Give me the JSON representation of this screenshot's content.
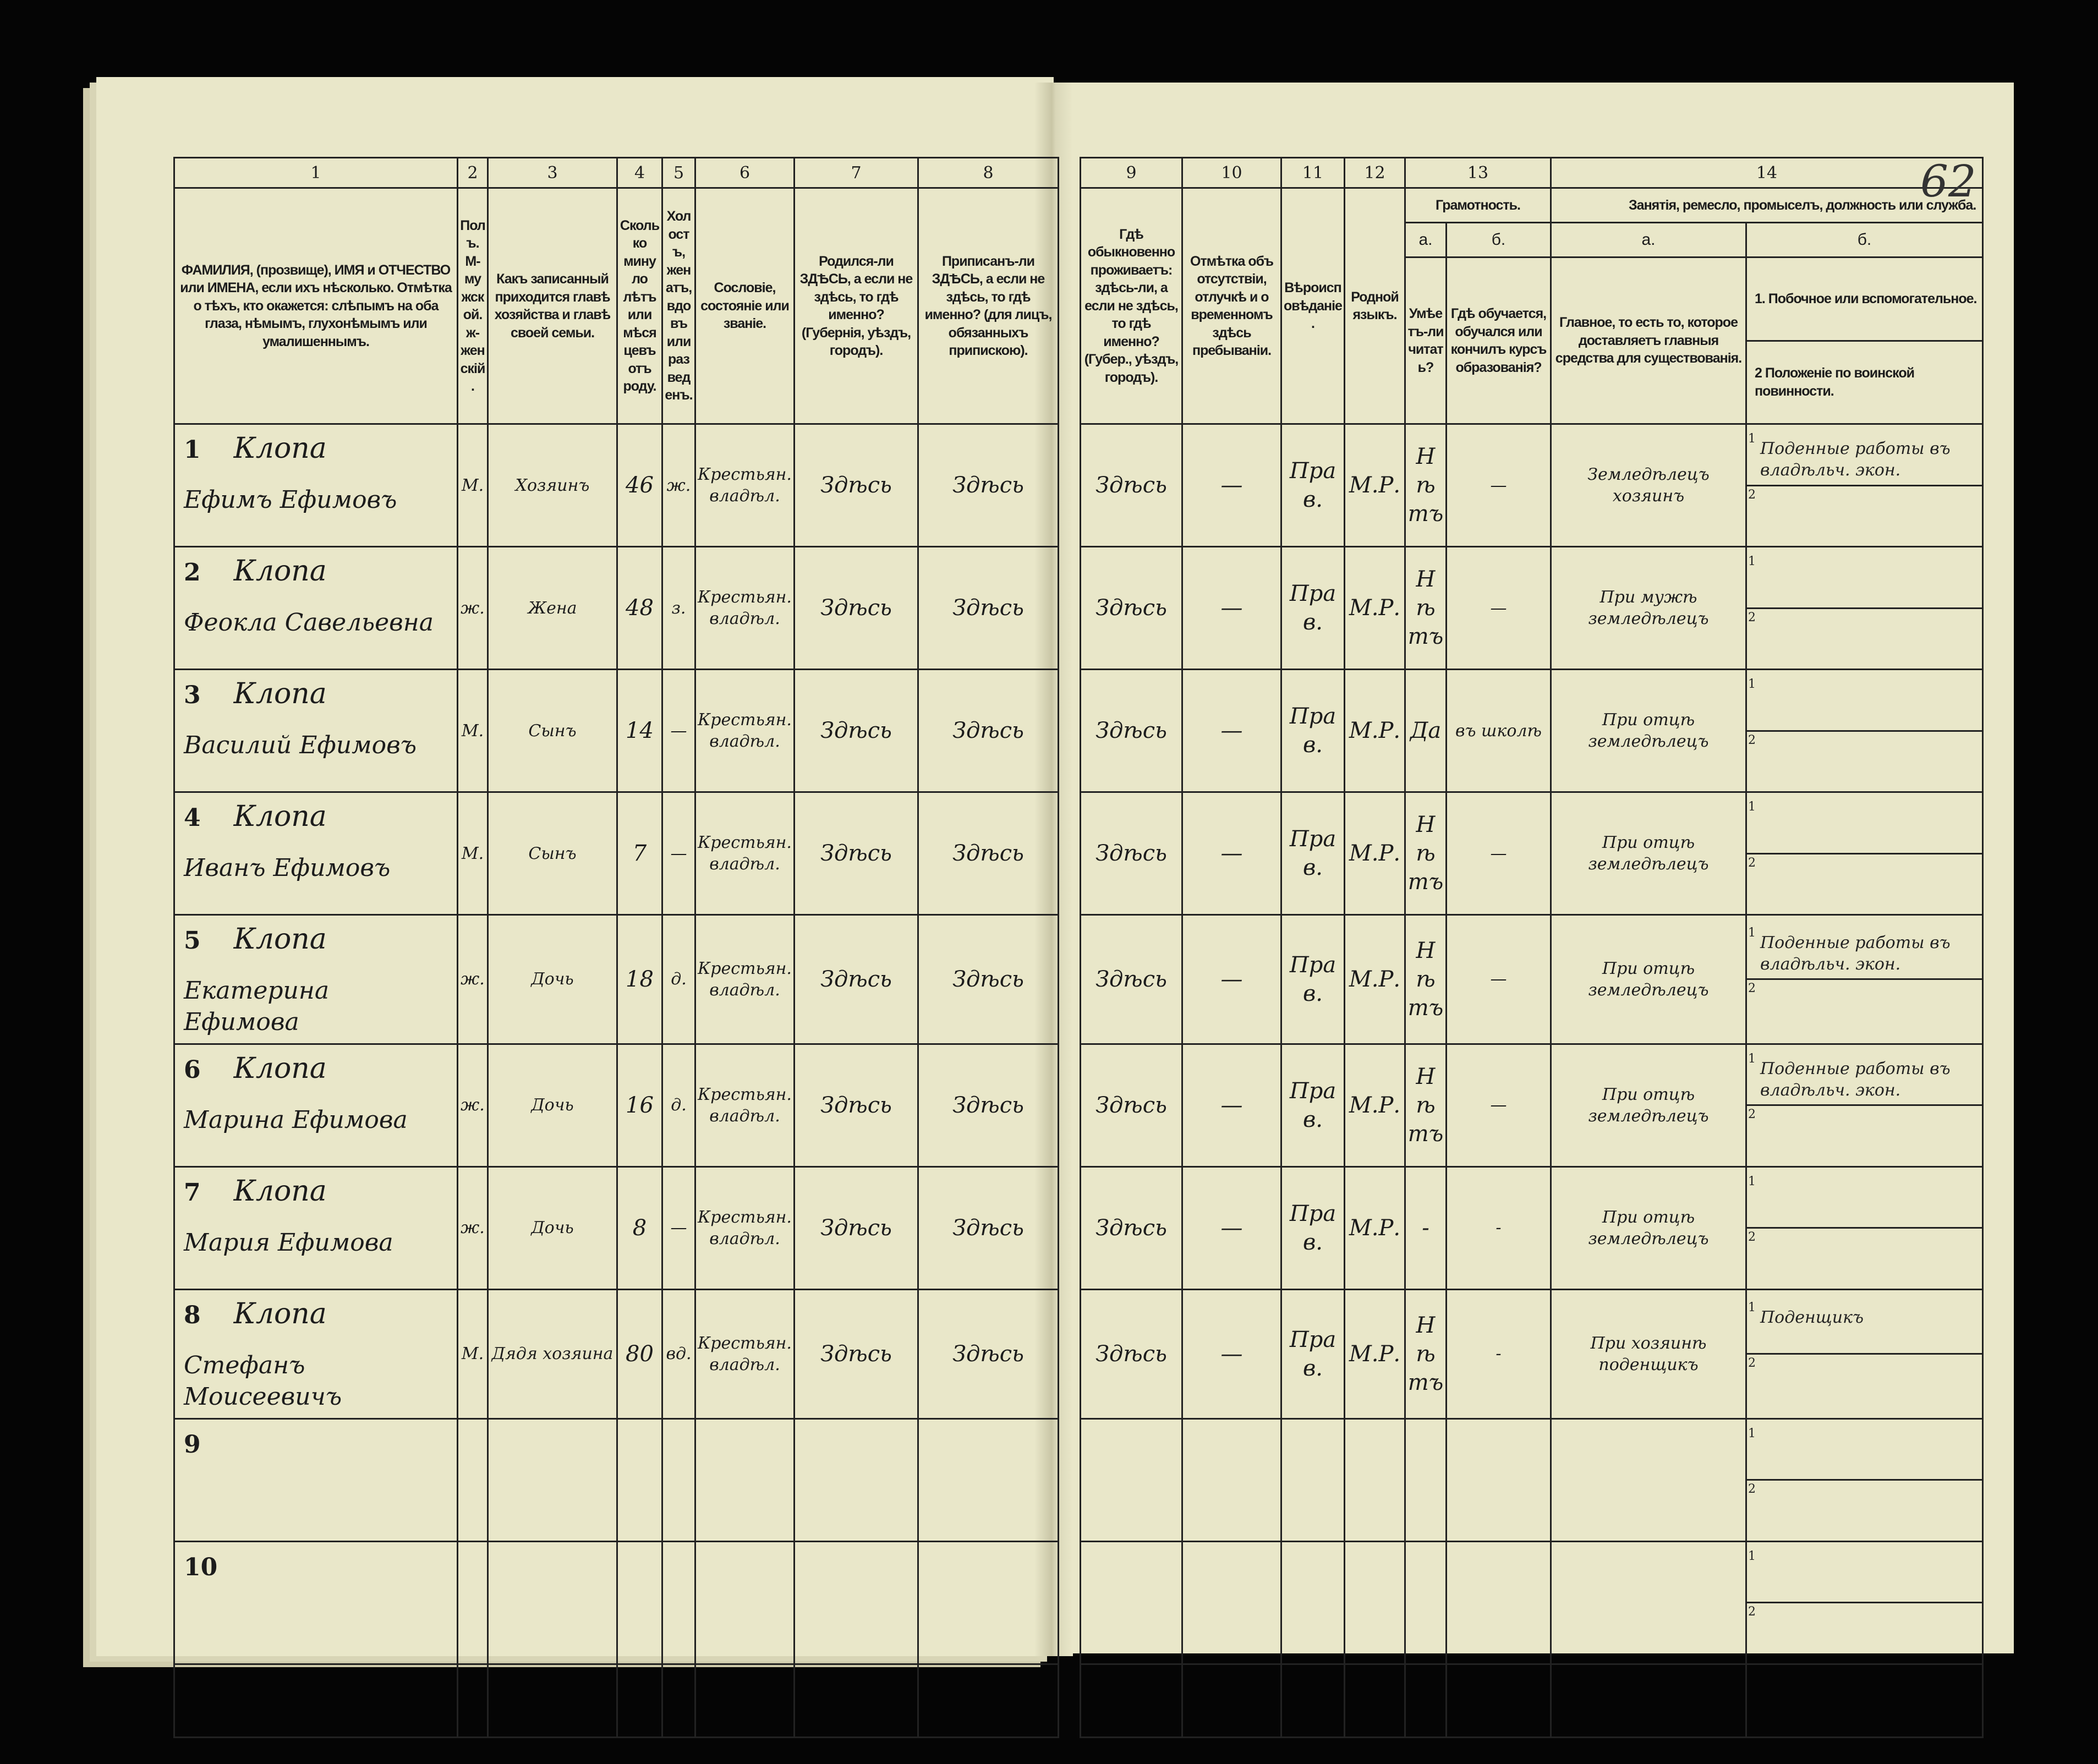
{
  "page_number": "62",
  "header": {
    "col_numbers": [
      "1",
      "2",
      "3",
      "4",
      "5",
      "6",
      "7",
      "8",
      "9",
      "10",
      "11",
      "12",
      "13",
      "14"
    ],
    "col1": "ФАМИЛИЯ, (прозвище), ИМЯ и ОТЧЕСТВО или ИМЕНА, если ихъ нѣсколько. Отмѣтка о тѣхъ, кто окажется: слѣпымъ на оба глаза, нѣмымъ, глухонѣмымъ или умалишеннымъ.",
    "col2": "Полъ. М-мужской. ж-женскій.",
    "col3": "Какъ записанный приходится главѣ хозяйства и главѣ своей семьи.",
    "col4": "Сколько минуло лѣтъ или мѣсяцевъ отъ роду.",
    "col5": "Холостъ, женатъ, вдовъ или разведенъ.",
    "col6": "Сословіе, состояніе или званіе.",
    "col7": "Родился-ли ЗДѢСЬ, а если не здѣсь, то гдѣ именно? (Губернія, уѣздъ, городъ).",
    "col8": "Приписанъ-ли ЗДѢСЬ, а если не здѣсь, то гдѣ именно? (для лицъ, обязанныхъ припискою).",
    "col9": "Гдѣ обыкновенно проживаетъ: здѣсь-ли, а если не здѣсь, то гдѣ именно? (Губер., уѣздъ, городъ).",
    "col10": "Отмѣтка объ отсутствіи, отлучкѣ и о временномъ здѣсь пребываніи.",
    "col11": "Вѣроисповѣданіе.",
    "col12": "Родной языкъ.",
    "col13_title": "Грамотность.",
    "col13a_label": "а.",
    "col13a": "Умѣетъ-ли читать?",
    "col13b_label": "б.",
    "col13b": "Гдѣ обучается, обучался или кончилъ курсъ образованія?",
    "col14_title": "Занятія, ремесло, промыселъ, должность или служба.",
    "col14a_label": "а.",
    "col14a": "Главное, то есть то, которое доставляетъ главныя средства для существованія.",
    "col14b_label": "б.",
    "col14b_1": "1. Побочное или вспомогательное.",
    "col14b_2": "2 Положеніе по воинской повинности."
  },
  "rows": [
    {
      "n": "1",
      "surname": "Клопа",
      "given": "Ефимъ Ефимовъ",
      "sex": "М.",
      "relation": "Хозяинъ",
      "age": "46",
      "marital": "ж.",
      "estate": "Крестьян. владѣл.",
      "born": "Здѣсь",
      "registered": "Здѣсь",
      "lives": "Здѣсь",
      "absence": "—",
      "religion": "Прав.",
      "language": "М.Р.",
      "literate": "Нѣтъ",
      "school": "—",
      "occupation": "Земледѣлецъ хозяинъ",
      "secondary_1": "Поденные работы въ владѣльч. экон.",
      "secondary_2": ""
    },
    {
      "n": "2",
      "surname": "Клопа",
      "given": "Феокла Савельевна",
      "sex": "ж.",
      "relation": "Жена",
      "age": "48",
      "marital": "з.",
      "estate": "Крестьян. владѣл.",
      "born": "Здѣсь",
      "registered": "Здѣсь",
      "lives": "Здѣсь",
      "absence": "—",
      "religion": "Прав.",
      "language": "М.Р.",
      "literate": "Нѣтъ",
      "school": "—",
      "occupation": "При мужѣ земледѣлецъ",
      "secondary_1": "",
      "secondary_2": ""
    },
    {
      "n": "3",
      "surname": "Клопа",
      "given": "Василий Ефимовъ",
      "sex": "М.",
      "relation": "Сынъ",
      "age": "14",
      "marital": "—",
      "estate": "Крестьян. владѣл.",
      "born": "Здѣсь",
      "registered": "Здѣсь",
      "lives": "Здѣсь",
      "absence": "—",
      "religion": "Прав.",
      "language": "М.Р.",
      "literate": "Да",
      "school": "въ школѣ",
      "occupation": "При отцѣ земледѣлецъ",
      "secondary_1": "",
      "secondary_2": ""
    },
    {
      "n": "4",
      "surname": "Клопа",
      "given": "Иванъ Ефимовъ",
      "sex": "М.",
      "relation": "Сынъ",
      "age": "7",
      "marital": "—",
      "estate": "Крестьян. владѣл.",
      "born": "Здѣсь",
      "registered": "Здѣсь",
      "lives": "Здѣсь",
      "absence": "—",
      "religion": "Прав.",
      "language": "М.Р.",
      "literate": "Нѣтъ",
      "school": "—",
      "occupation": "При отцѣ земледѣлецъ",
      "secondary_1": "",
      "secondary_2": ""
    },
    {
      "n": "5",
      "surname": "Клопа",
      "given": "Екатерина Ефимова",
      "sex": "ж.",
      "relation": "Дочь",
      "age": "18",
      "marital": "д.",
      "estate": "Крестьян. владѣл.",
      "born": "Здѣсь",
      "registered": "Здѣсь",
      "lives": "Здѣсь",
      "absence": "—",
      "religion": "Прав.",
      "language": "М.Р.",
      "literate": "Нѣтъ",
      "school": "—",
      "occupation": "При отцѣ земледѣлецъ",
      "secondary_1": "Поденные работы въ владѣльч. экон.",
      "secondary_2": ""
    },
    {
      "n": "6",
      "surname": "Клопа",
      "given": "Марина Ефимова",
      "sex": "ж.",
      "relation": "Дочь",
      "age": "16",
      "marital": "д.",
      "estate": "Крестьян. владѣл.",
      "born": "Здѣсь",
      "registered": "Здѣсь",
      "lives": "Здѣсь",
      "absence": "—",
      "religion": "Прав.",
      "language": "М.Р.",
      "literate": "Нѣтъ",
      "school": "—",
      "occupation": "При отцѣ земледѣлецъ",
      "secondary_1": "Поденные работы въ владѣльч. экон.",
      "secondary_2": ""
    },
    {
      "n": "7",
      "surname": "Клопа",
      "given": "Мария Ефимова",
      "sex": "ж.",
      "relation": "Дочь",
      "age": "8",
      "marital": "—",
      "estate": "Крестьян. владѣл.",
      "born": "Здѣсь",
      "registered": "Здѣсь",
      "lives": "Здѣсь",
      "absence": "—",
      "religion": "Прав.",
      "language": "М.Р.",
      "literate": "-",
      "school": "-",
      "occupation": "При отцѣ земледѣлецъ",
      "secondary_1": "",
      "secondary_2": ""
    },
    {
      "n": "8",
      "surname": "Клопа",
      "given": "Стефанъ Моисеевичъ",
      "sex": "М.",
      "relation": "Дядя хозяина",
      "age": "80",
      "marital": "вд.",
      "estate": "Крестьян. владѣл.",
      "born": "Здѣсь",
      "registered": "Здѣсь",
      "lives": "Здѣсь",
      "absence": "—",
      "religion": "Прав.",
      "language": "М.Р.",
      "literate": "Нѣтъ",
      "school": "-",
      "occupation": "При хозяинѣ поденщикъ",
      "secondary_1": "Поденщикъ",
      "secondary_2": ""
    },
    {
      "n": "9",
      "surname": "",
      "given": "",
      "sex": "",
      "relation": "",
      "age": "",
      "marital": "",
      "estate": "",
      "born": "",
      "registered": "",
      "lives": "",
      "absence": "",
      "religion": "",
      "language": "",
      "literate": "",
      "school": "",
      "occupation": "",
      "secondary_1": "",
      "secondary_2": ""
    },
    {
      "n": "10",
      "surname": "",
      "given": "",
      "sex": "",
      "relation": "",
      "age": "",
      "marital": "",
      "estate": "",
      "born": "",
      "registered": "",
      "lives": "",
      "absence": "",
      "religion": "",
      "language": "",
      "literate": "",
      "school": "",
      "occupation": "",
      "secondary_1": "",
      "secondary_2": ""
    }
  ],
  "sub_slot_labels": [
    "1",
    "2"
  ]
}
